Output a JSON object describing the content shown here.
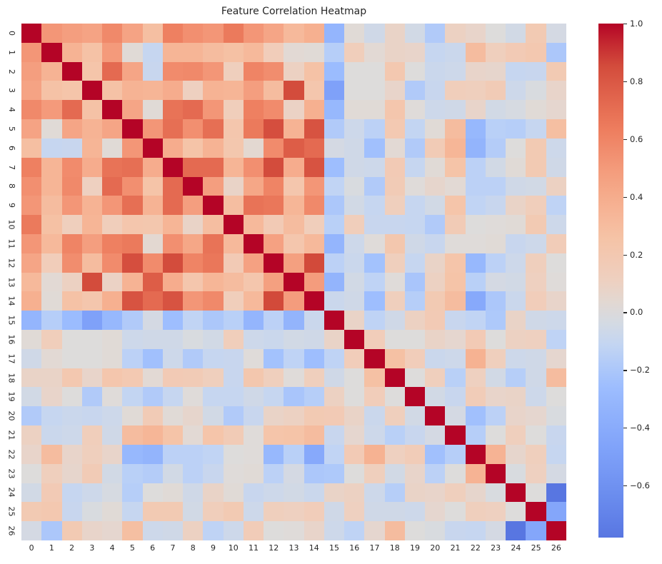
{
  "title": "Feature Correlation Heatmap",
  "chart_data": {
    "type": "heatmap",
    "title": "Feature Correlation Heatmap",
    "x_labels": [
      "0",
      "1",
      "2",
      "3",
      "4",
      "5",
      "6",
      "7",
      "8",
      "9",
      "10",
      "11",
      "12",
      "13",
      "14",
      "15",
      "16",
      "17",
      "18",
      "19",
      "20",
      "21",
      "22",
      "23",
      "24",
      "25",
      "26"
    ],
    "y_labels": [
      "0",
      "1",
      "2",
      "3",
      "4",
      "5",
      "6",
      "7",
      "8",
      "9",
      "10",
      "11",
      "12",
      "13",
      "14",
      "15",
      "16",
      "17",
      "18",
      "19",
      "20",
      "21",
      "22",
      "23",
      "24",
      "25",
      "26"
    ],
    "colormap": "coolwarm",
    "norm_domain": [
      -1,
      1
    ],
    "vmax": 1.0,
    "vmin": -0.78,
    "legend_position": "right-colorbar",
    "grid": false,
    "colorbar_ticks": [
      {
        "value": 1.0,
        "label": "1.0"
      },
      {
        "value": 0.8,
        "label": "0.8"
      },
      {
        "value": 0.6,
        "label": "0.6"
      },
      {
        "value": 0.4,
        "label": "0.4"
      },
      {
        "value": 0.2,
        "label": "0.2"
      },
      {
        "value": 0.0,
        "label": "0.0"
      },
      {
        "value": -0.2,
        "label": "−0.2"
      },
      {
        "value": -0.4,
        "label": "−0.4"
      },
      {
        "value": -0.6,
        "label": "−0.6"
      }
    ],
    "matrix_upper": [
      [
        1.0,
        0.52,
        0.48,
        0.45,
        0.58,
        0.45,
        0.28,
        0.62,
        0.55,
        0.52,
        0.65,
        0.52,
        0.44,
        0.32,
        0.38,
        -0.32,
        0.02,
        -0.06,
        0.08,
        -0.05,
        -0.18,
        0.1,
        0.07,
        0.0,
        -0.05,
        0.18,
        -0.04
      ],
      [
        1.0,
        0.36,
        0.26,
        0.5,
        0.02,
        -0.1,
        0.35,
        0.35,
        0.3,
        0.27,
        0.32,
        0.14,
        0.03,
        0.02,
        -0.16,
        0.13,
        0.03,
        0.08,
        0.07,
        -0.1,
        -0.08,
        0.3,
        0.12,
        0.17,
        0.2,
        -0.2
      ],
      [
        1.0,
        0.24,
        0.72,
        0.44,
        -0.09,
        0.57,
        0.58,
        0.52,
        0.12,
        0.6,
        0.56,
        0.1,
        0.26,
        -0.27,
        0.0,
        0.0,
        0.2,
        0.0,
        -0.08,
        -0.07,
        0.07,
        0.06,
        -0.1,
        -0.09,
        0.18
      ],
      [
        1.0,
        0.26,
        0.36,
        0.35,
        0.4,
        0.11,
        0.36,
        0.35,
        0.48,
        0.3,
        0.85,
        0.22,
        -0.48,
        0.0,
        0.0,
        0.07,
        -0.18,
        -0.09,
        0.13,
        0.12,
        0.16,
        -0.07,
        -0.02,
        0.07
      ],
      [
        1.0,
        0.44,
        0.02,
        0.68,
        0.72,
        0.52,
        0.13,
        0.62,
        0.57,
        0.09,
        0.38,
        -0.3,
        0.02,
        0.02,
        0.22,
        0.01,
        -0.07,
        -0.06,
        0.07,
        -0.05,
        -0.03,
        0.02,
        0.05
      ],
      [
        1.0,
        0.52,
        0.7,
        0.55,
        0.7,
        0.22,
        0.65,
        0.84,
        0.36,
        0.82,
        -0.18,
        -0.07,
        -0.14,
        0.19,
        -0.11,
        0.02,
        0.3,
        -0.3,
        -0.15,
        -0.16,
        -0.1,
        0.28
      ],
      [
        1.0,
        0.4,
        0.25,
        0.36,
        0.21,
        0.04,
        0.57,
        0.78,
        0.72,
        -0.04,
        -0.06,
        -0.24,
        0.03,
        -0.18,
        0.16,
        0.34,
        -0.33,
        -0.17,
        0.0,
        0.18,
        -0.07
      ],
      [
        1.0,
        0.72,
        0.72,
        0.35,
        0.55,
        0.85,
        0.4,
        0.82,
        -0.25,
        -0.06,
        -0.07,
        0.17,
        -0.1,
        0.02,
        0.25,
        -0.14,
        -0.05,
        0.02,
        0.18,
        -0.06
      ],
      [
        1.0,
        0.48,
        0.08,
        0.43,
        0.6,
        0.22,
        0.52,
        -0.12,
        -0.02,
        -0.18,
        0.16,
        0.01,
        0.06,
        0.03,
        -0.14,
        -0.14,
        -0.06,
        -0.05,
        0.1
      ],
      [
        1.0,
        0.29,
        0.68,
        0.66,
        0.34,
        0.58,
        -0.2,
        -0.05,
        -0.1,
        0.12,
        -0.1,
        -0.05,
        0.24,
        -0.12,
        -0.09,
        0.08,
        0.13,
        -0.13
      ],
      [
        1.0,
        0.32,
        0.17,
        0.3,
        0.13,
        -0.15,
        0.13,
        -0.09,
        -0.09,
        -0.1,
        -0.18,
        0.16,
        0.0,
        0.01,
        0.02,
        0.18,
        -0.07
      ],
      [
        1.0,
        0.46,
        0.22,
        0.32,
        -0.32,
        -0.07,
        0.01,
        0.21,
        -0.06,
        -0.09,
        0.01,
        0.01,
        0.02,
        -0.09,
        -0.07,
        0.15
      ],
      [
        1.0,
        0.47,
        0.86,
        -0.14,
        -0.08,
        -0.23,
        0.12,
        -0.1,
        0.08,
        0.24,
        -0.3,
        -0.14,
        -0.07,
        0.12,
        0.0
      ],
      [
        1.0,
        0.49,
        -0.33,
        -0.05,
        -0.13,
        0.01,
        -0.21,
        0.1,
        0.25,
        -0.15,
        -0.04,
        -0.05,
        0.11,
        0.01
      ],
      [
        1.0,
        -0.08,
        -0.06,
        -0.25,
        0.12,
        -0.16,
        0.18,
        0.3,
        -0.42,
        -0.2,
        -0.08,
        0.14,
        0.07
      ],
      [
        1.0,
        0.08,
        -0.13,
        -0.06,
        0.1,
        0.17,
        -0.09,
        -0.12,
        -0.19,
        0.08,
        -0.06,
        -0.07
      ],
      [
        1.0,
        0.14,
        0.0,
        0.0,
        0.08,
        0.05,
        0.17,
        0.0,
        0.1,
        0.11,
        -0.13
      ],
      [
        1.0,
        0.27,
        0.14,
        -0.08,
        -0.07,
        0.37,
        0.12,
        -0.07,
        -0.06,
        0.05
      ],
      [
        1.0,
        0.0,
        0.12,
        -0.15,
        0.11,
        -0.05,
        -0.16,
        -0.06,
        0.3
      ],
      [
        1.0,
        -0.05,
        -0.09,
        0.15,
        0.07,
        0.08,
        -0.07,
        0.0
      ],
      [
        1.0,
        -0.04,
        -0.24,
        -0.14,
        0.07,
        0.05,
        -0.02
      ],
      [
        1.0,
        -0.16,
        0.0,
        0.12,
        0.0,
        -0.09
      ],
      [
        1.0,
        0.36,
        0.06,
        0.12,
        -0.1
      ],
      [
        1.0,
        -0.02,
        0.11,
        -0.04
      ],
      [
        1.0,
        0.0,
        -0.78
      ],
      [
        1.0,
        -0.44
      ],
      [
        1.0
      ]
    ]
  }
}
